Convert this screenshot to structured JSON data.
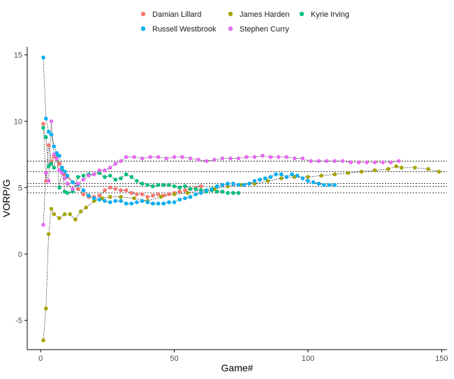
{
  "chart_data": {
    "type": "scatter",
    "title": "",
    "xlabel": "Game#",
    "ylabel": "VORP/G",
    "xlim": [
      -5,
      152
    ],
    "ylim": [
      -7.2,
      15.6
    ],
    "x_ticks": [
      0,
      50,
      100,
      150
    ],
    "y_ticks": [
      -5,
      0,
      5,
      10,
      15
    ],
    "legend_position": "top",
    "reference_lines": [
      7.0,
      6.2,
      5.3,
      5.1,
      4.6
    ],
    "series": [
      {
        "name": "Damian Lillard",
        "color": "#F8766D",
        "x": [
          1,
          2,
          3,
          4,
          5,
          6,
          7,
          8,
          9,
          10,
          12,
          14,
          16,
          18,
          20,
          22,
          24,
          26,
          28,
          30,
          32,
          34,
          36,
          38,
          40,
          42,
          44,
          46,
          48,
          50,
          52,
          54,
          56,
          58,
          60
        ],
        "y": [
          9.8,
          5.5,
          8.2,
          7.0,
          7.3,
          7.2,
          6.8,
          6.5,
          6.0,
          5.8,
          5.4,
          4.9,
          4.5,
          4.3,
          4.3,
          4.4,
          4.8,
          5.0,
          4.9,
          4.8,
          4.8,
          4.6,
          4.5,
          4.5,
          4.3,
          4.4,
          4.5,
          4.4,
          4.5,
          4.6,
          4.7,
          4.8,
          4.9,
          5.0,
          5.1
        ]
      },
      {
        "name": "James Harden",
        "color": "#A3A500",
        "x": [
          1,
          2,
          3,
          4,
          5,
          7,
          9,
          11,
          13,
          15,
          17,
          20,
          23,
          26,
          30,
          35,
          40,
          45,
          50,
          55,
          60,
          65,
          70,
          75,
          80,
          85,
          90,
          95,
          100,
          105,
          110,
          115,
          120,
          125,
          130,
          133,
          135,
          140,
          145,
          149
        ],
        "y": [
          -6.5,
          -4.1,
          1.5,
          3.4,
          3.0,
          2.7,
          3.0,
          3.0,
          2.6,
          3.2,
          3.5,
          4.0,
          4.2,
          4.3,
          4.3,
          4.2,
          4.0,
          4.3,
          4.5,
          4.6,
          4.8,
          4.9,
          5.1,
          5.2,
          5.3,
          5.5,
          5.7,
          5.8,
          5.8,
          5.9,
          6.0,
          6.1,
          6.2,
          6.3,
          6.4,
          6.6,
          6.5,
          6.5,
          6.4,
          6.2
        ]
      },
      {
        "name": "Kyrie Irving",
        "color": "#00BF7D",
        "x": [
          1,
          2,
          3,
          4,
          5,
          6,
          7,
          8,
          9,
          10,
          12,
          14,
          16,
          18,
          20,
          22,
          24,
          26,
          28,
          30,
          32,
          34,
          36,
          38,
          40,
          42,
          44,
          46,
          48,
          50,
          52,
          54,
          56,
          58,
          60,
          62,
          64,
          66,
          68,
          70,
          72,
          74
        ],
        "y": [
          9.5,
          8.8,
          6.6,
          6.8,
          6.5,
          7.5,
          5.0,
          6.3,
          4.7,
          4.6,
          4.7,
          5.8,
          5.9,
          6.0,
          6.0,
          6.1,
          5.8,
          5.9,
          5.6,
          5.7,
          6.0,
          5.8,
          5.5,
          5.3,
          5.2,
          5.1,
          5.2,
          5.2,
          5.2,
          5.1,
          5.0,
          5.1,
          4.9,
          4.9,
          4.8,
          4.7,
          4.8,
          4.7,
          4.7,
          4.6,
          4.6,
          4.6
        ]
      },
      {
        "name": "Russell Westbrook",
        "color": "#00B0F6",
        "x": [
          1,
          2,
          3,
          4,
          5,
          6,
          7,
          8,
          9,
          10,
          12,
          14,
          16,
          18,
          20,
          22,
          24,
          26,
          28,
          30,
          32,
          34,
          36,
          38,
          40,
          42,
          44,
          46,
          48,
          50,
          52,
          54,
          56,
          58,
          60,
          62,
          64,
          66,
          68,
          70,
          72,
          74,
          76,
          78,
          80,
          82,
          84,
          86,
          88,
          90,
          92,
          94,
          96,
          98,
          100,
          102,
          104,
          106,
          108,
          110
        ],
        "y": [
          14.8,
          10.2,
          9.2,
          9.0,
          8.1,
          7.6,
          7.4,
          6.5,
          6.2,
          5.9,
          5.4,
          5.2,
          4.8,
          4.4,
          4.2,
          4.1,
          4.0,
          3.9,
          4.0,
          4.0,
          3.8,
          3.8,
          3.9,
          4.0,
          3.9,
          3.8,
          3.8,
          3.8,
          3.9,
          3.9,
          4.1,
          4.2,
          4.3,
          4.5,
          4.6,
          4.8,
          4.9,
          5.1,
          5.2,
          5.3,
          5.3,
          5.2,
          5.2,
          5.3,
          5.5,
          5.6,
          5.7,
          5.8,
          6.0,
          6.0,
          5.8,
          6.0,
          5.9,
          5.7,
          5.5,
          5.4,
          5.3,
          5.2,
          5.2,
          5.2
        ]
      },
      {
        "name": "Stephen Curry",
        "color": "#E76BF3",
        "x": [
          1,
          2,
          3,
          4,
          5,
          6,
          7,
          8,
          9,
          10,
          12,
          14,
          16,
          18,
          20,
          22,
          24,
          26,
          28,
          30,
          32,
          35,
          38,
          41,
          44,
          47,
          50,
          53,
          56,
          59,
          62,
          65,
          68,
          71,
          74,
          77,
          80,
          83,
          86,
          89,
          92,
          95,
          98,
          101,
          104,
          107,
          110,
          113,
          116,
          119,
          122,
          125,
          128,
          131,
          134
        ],
        "y": [
          2.2,
          6.1,
          5.5,
          10.0,
          7.5,
          7.2,
          6.3,
          6.1,
          5.7,
          5.3,
          4.9,
          5.3,
          5.6,
          5.9,
          6.0,
          6.3,
          6.3,
          6.5,
          6.8,
          7.0,
          7.3,
          7.3,
          7.2,
          7.3,
          7.3,
          7.2,
          7.3,
          7.3,
          7.2,
          7.1,
          7.0,
          7.1,
          7.2,
          7.2,
          7.2,
          7.3,
          7.3,
          7.4,
          7.3,
          7.3,
          7.3,
          7.2,
          7.2,
          7.0,
          7.0,
          7.0,
          7.0,
          7.0,
          6.9,
          6.9,
          6.9,
          6.9,
          6.9,
          6.9,
          7.0
        ]
      }
    ]
  },
  "legend": {
    "rows": [
      [
        "Damian Lillard",
        "James Harden",
        "Kyrie Irving"
      ],
      [
        "Russell Westbrook",
        "Stephen Curry"
      ]
    ]
  }
}
